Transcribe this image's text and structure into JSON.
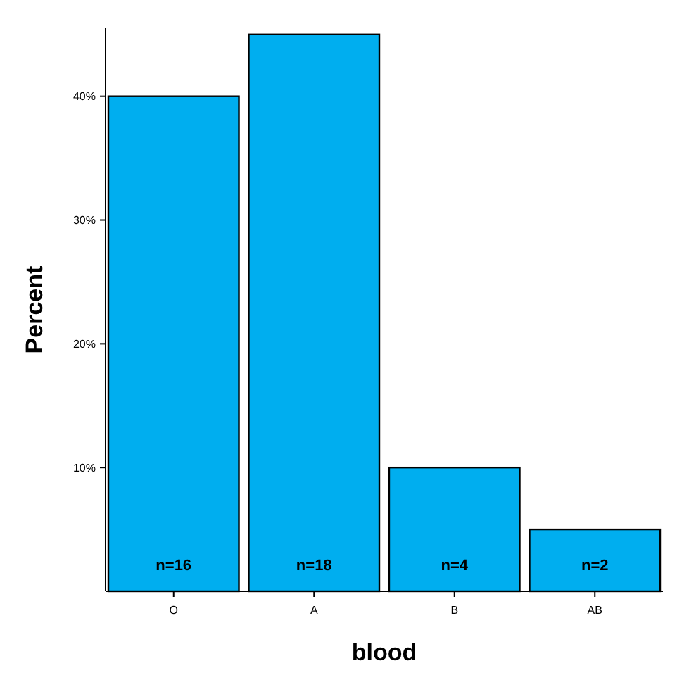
{
  "chart_data": {
    "type": "bar",
    "xlabel": "blood",
    "ylabel": "Percent",
    "categories": [
      "O",
      "A",
      "B",
      "AB"
    ],
    "values": [
      40,
      45,
      10,
      5
    ],
    "color": "#00aeef",
    "ylim": [
      0,
      45.5
    ],
    "yticks": [
      {
        "value": 10,
        "label": "10%"
      },
      {
        "value": 20,
        "label": "20%"
      },
      {
        "value": 30,
        "label": "30%"
      },
      {
        "value": 40,
        "label": "40%"
      }
    ],
    "annotations": [
      "n=16",
      "n=18",
      "n=4",
      "n=2"
    ]
  }
}
